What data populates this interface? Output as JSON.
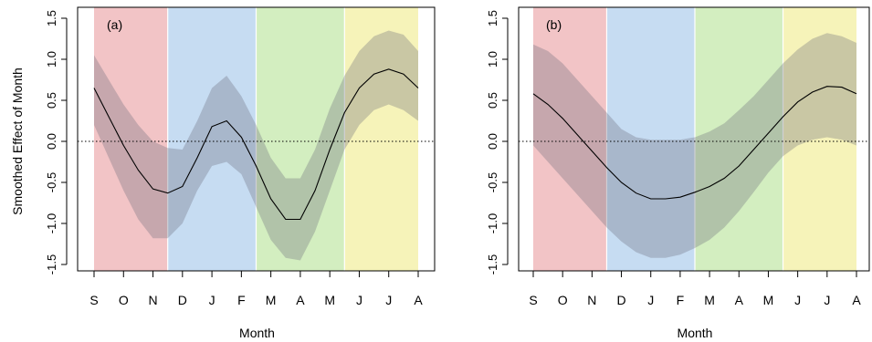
{
  "figure": {
    "ylabel": "Smoothed Effect of Month",
    "xlabel": "Month",
    "month_ticks": [
      "S",
      "O",
      "N",
      "D",
      "J",
      "F",
      "M",
      "A",
      "M",
      "J",
      "J",
      "A"
    ],
    "y_ticks": [
      "-1.5",
      "-1.0",
      "-0.5",
      "0.0",
      "0.5",
      "1.0",
      "1.5"
    ]
  },
  "colors": {
    "season_bands": [
      "#f2c4c6",
      "#c6dcf2",
      "#d3eec0",
      "#f6f3b9"
    ],
    "ci_band": "#6b6b7a",
    "line": "#000000"
  },
  "chart_data": [
    {
      "type": "line",
      "panel_label": "(a)",
      "xlabel": "Month",
      "ylabel": "Smoothed Effect of Month",
      "categories": [
        "S",
        "O",
        "N",
        "D",
        "J",
        "F",
        "M",
        "A",
        "M",
        "J",
        "J",
        "A"
      ],
      "x": [
        0,
        0.5,
        1,
        1.5,
        2,
        2.5,
        3,
        3.5,
        4,
        4.5,
        5,
        5.5,
        6,
        6.5,
        7,
        7.5,
        8,
        8.5,
        9,
        9.5,
        10,
        10.5,
        11
      ],
      "series": [
        {
          "values": [
            0.65,
            0.3,
            -0.05,
            -0.35,
            -0.58,
            -0.63,
            -0.55,
            -0.2,
            0.18,
            0.25,
            0.05,
            -0.3,
            -0.7,
            -0.95,
            -0.95,
            -0.6,
            -0.1,
            0.35,
            0.65,
            0.82,
            0.88,
            0.82,
            0.65
          ]
        }
      ],
      "ci_lower": [
        0.2,
        -0.2,
        -0.6,
        -0.95,
        -1.18,
        -1.18,
        -1.0,
        -0.6,
        -0.3,
        -0.25,
        -0.4,
        -0.8,
        -1.2,
        -1.42,
        -1.45,
        -1.1,
        -0.6,
        -0.1,
        0.2,
        0.38,
        0.45,
        0.38,
        0.25
      ],
      "ci_upper": [
        1.05,
        0.75,
        0.45,
        0.2,
        0.0,
        -0.08,
        -0.1,
        0.25,
        0.65,
        0.8,
        0.55,
        0.2,
        -0.2,
        -0.45,
        -0.45,
        -0.1,
        0.4,
        0.8,
        1.1,
        1.28,
        1.35,
        1.3,
        1.1
      ],
      "seasons": [
        [
          0,
          2.5
        ],
        [
          2.5,
          5.5
        ],
        [
          5.5,
          8.5
        ],
        [
          8.5,
          11
        ]
      ],
      "reference_line": 0,
      "xlim": [
        0,
        11
      ],
      "ylim": [
        -1.5,
        1.5
      ]
    },
    {
      "type": "line",
      "panel_label": "(b)",
      "xlabel": "Month",
      "ylabel": "",
      "categories": [
        "S",
        "O",
        "N",
        "D",
        "J",
        "F",
        "M",
        "A",
        "M",
        "J",
        "J",
        "A"
      ],
      "x": [
        0,
        0.5,
        1,
        1.5,
        2,
        2.5,
        3,
        3.5,
        4,
        4.5,
        5,
        5.5,
        6,
        6.5,
        7,
        7.5,
        8,
        8.5,
        9,
        9.5,
        10,
        10.5,
        11
      ],
      "series": [
        {
          "values": [
            0.58,
            0.45,
            0.28,
            0.08,
            -0.12,
            -0.32,
            -0.5,
            -0.63,
            -0.7,
            -0.7,
            -0.68,
            -0.62,
            -0.55,
            -0.45,
            -0.3,
            -0.1,
            0.1,
            0.3,
            0.48,
            0.6,
            0.67,
            0.66,
            0.58
          ]
        }
      ],
      "ci_lower": [
        -0.05,
        -0.25,
        -0.45,
        -0.65,
        -0.85,
        -1.05,
        -1.22,
        -1.35,
        -1.42,
        -1.42,
        -1.38,
        -1.3,
        -1.2,
        -1.05,
        -0.85,
        -0.62,
        -0.38,
        -0.18,
        -0.05,
        0.02,
        0.05,
        0.02,
        -0.05
      ],
      "ci_upper": [
        1.18,
        1.1,
        0.95,
        0.75,
        0.55,
        0.35,
        0.15,
        0.05,
        0.02,
        0.02,
        0.02,
        0.05,
        0.12,
        0.22,
        0.38,
        0.55,
        0.75,
        0.95,
        1.12,
        1.25,
        1.32,
        1.28,
        1.2
      ],
      "seasons": [
        [
          0,
          2.5
        ],
        [
          2.5,
          5.5
        ],
        [
          5.5,
          8.5
        ],
        [
          8.5,
          11
        ]
      ],
      "reference_line": 0,
      "xlim": [
        0,
        11
      ],
      "ylim": [
        -1.5,
        1.5
      ]
    }
  ]
}
